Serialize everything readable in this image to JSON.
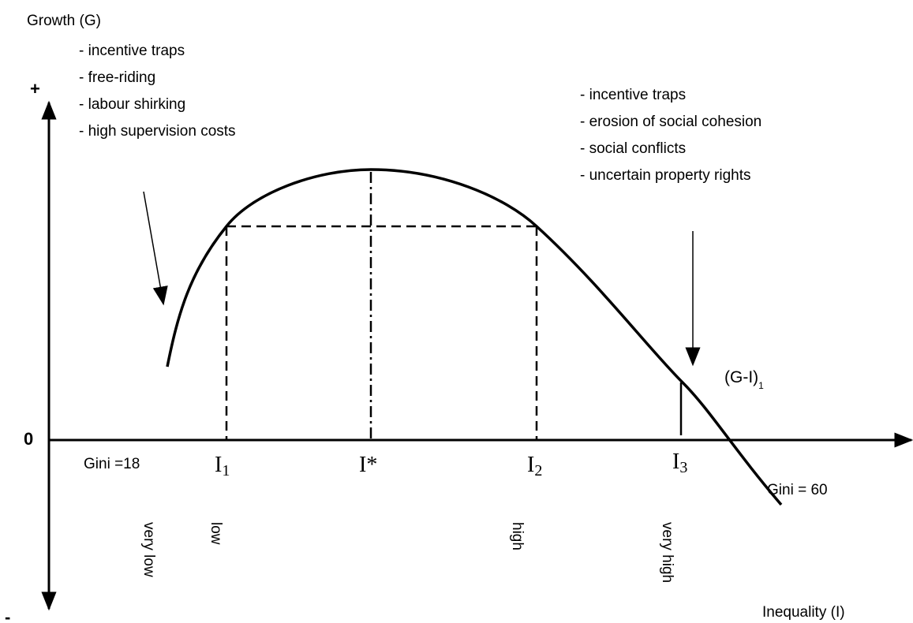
{
  "axis": {
    "y_label": "Growth (G)",
    "x_label": "Inequality (I)",
    "plus": "+",
    "zero": "0",
    "minus": "-"
  },
  "left_list": [
    "- incentive traps",
    "- free-riding",
    "- labour shirking",
    "- high supervision costs"
  ],
  "right_list": [
    "- incentive traps",
    "- erosion of social cohesion",
    "- social conflicts",
    "- uncertain property rights"
  ],
  "gini_low": "Gini =18",
  "gini_high": "Gini = 60",
  "points": [
    {
      "main": "I",
      "sub": "1"
    },
    {
      "main": "I*",
      "sub": ""
    },
    {
      "main": "I",
      "sub": "2"
    },
    {
      "main": "I",
      "sub": "3"
    }
  ],
  "curve_label": {
    "main": "(G-I)",
    "sub": "1"
  },
  "levels": [
    "very low",
    "low",
    "high",
    "very high"
  ]
}
